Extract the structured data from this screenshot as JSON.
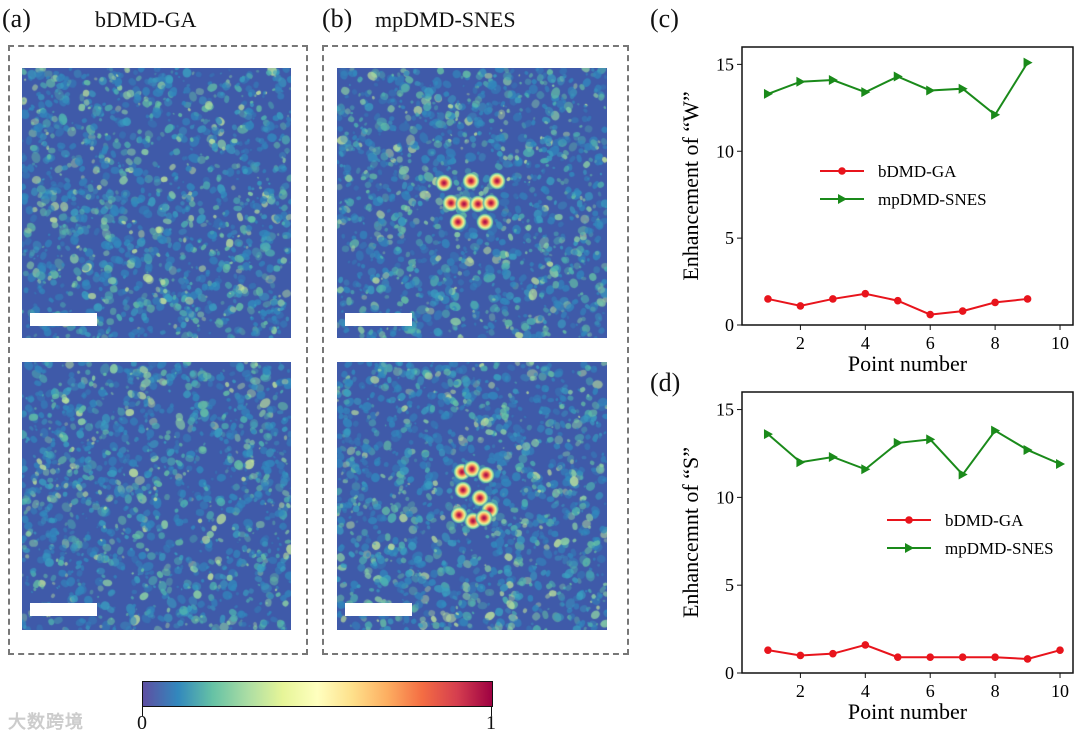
{
  "panels": {
    "a": {
      "label": "(a)",
      "title": "bDMD-GA"
    },
    "b": {
      "label": "(b)",
      "title": "mpDMD-SNES"
    },
    "c": {
      "label": "(c)"
    },
    "d": {
      "label": "(d)"
    }
  },
  "colorbar": {
    "min_label": "0",
    "max_label": "1",
    "colormap": [
      "#5e4fa2",
      "#3288bd",
      "#66c2a5",
      "#abdda4",
      "#e6f598",
      "#ffffbf",
      "#fee08b",
      "#fdae61",
      "#f46d43",
      "#d53e4f",
      "#9e0142"
    ]
  },
  "watermark": "大数跨境",
  "chart_data": [
    {
      "type": "line",
      "title": "",
      "xlabel": "Point number",
      "ylabel": "Enhancement of “W”",
      "xlim": [
        0.2,
        10.4
      ],
      "ylim": [
        0,
        16
      ],
      "xticks": [
        2,
        4,
        6,
        8,
        10
      ],
      "yticks": [
        0,
        5,
        10,
        15
      ],
      "grid": false,
      "legend_position": "center-left",
      "x": [
        1,
        2,
        3,
        4,
        5,
        6,
        7,
        8,
        9
      ],
      "series": [
        {
          "name": "bDMD-GA",
          "color": "#e8141c",
          "marker": "circle",
          "values": [
            1.5,
            1.1,
            1.5,
            1.8,
            1.4,
            0.6,
            0.8,
            1.3,
            1.5
          ]
        },
        {
          "name": "mpDMD-SNES",
          "color": "#1a8a1a",
          "marker": "triangle-right",
          "values": [
            13.3,
            14.0,
            14.1,
            13.4,
            14.3,
            13.5,
            13.6,
            12.1,
            15.1
          ]
        }
      ]
    },
    {
      "type": "line",
      "title": "",
      "xlabel": "Point number",
      "ylabel": "Enhancemnt of “S”",
      "xlim": [
        0.2,
        10.4
      ],
      "ylim": [
        0,
        16
      ],
      "xticks": [
        2,
        4,
        6,
        8,
        10
      ],
      "yticks": [
        0,
        5,
        10,
        15
      ],
      "grid": false,
      "legend_position": "center-right",
      "x": [
        1,
        2,
        3,
        4,
        5,
        6,
        7,
        8,
        9,
        10
      ],
      "series": [
        {
          "name": "bDMD-GA",
          "color": "#e8141c",
          "marker": "circle",
          "values": [
            1.3,
            1.0,
            1.1,
            1.6,
            0.9,
            0.9,
            0.9,
            0.9,
            0.8,
            1.3
          ]
        },
        {
          "name": "mpDMD-SNES",
          "color": "#1a8a1a",
          "marker": "triangle-right",
          "values": [
            13.6,
            12.0,
            12.3,
            11.6,
            13.1,
            13.3,
            11.3,
            13.8,
            12.7,
            11.9
          ]
        }
      ]
    }
  ]
}
